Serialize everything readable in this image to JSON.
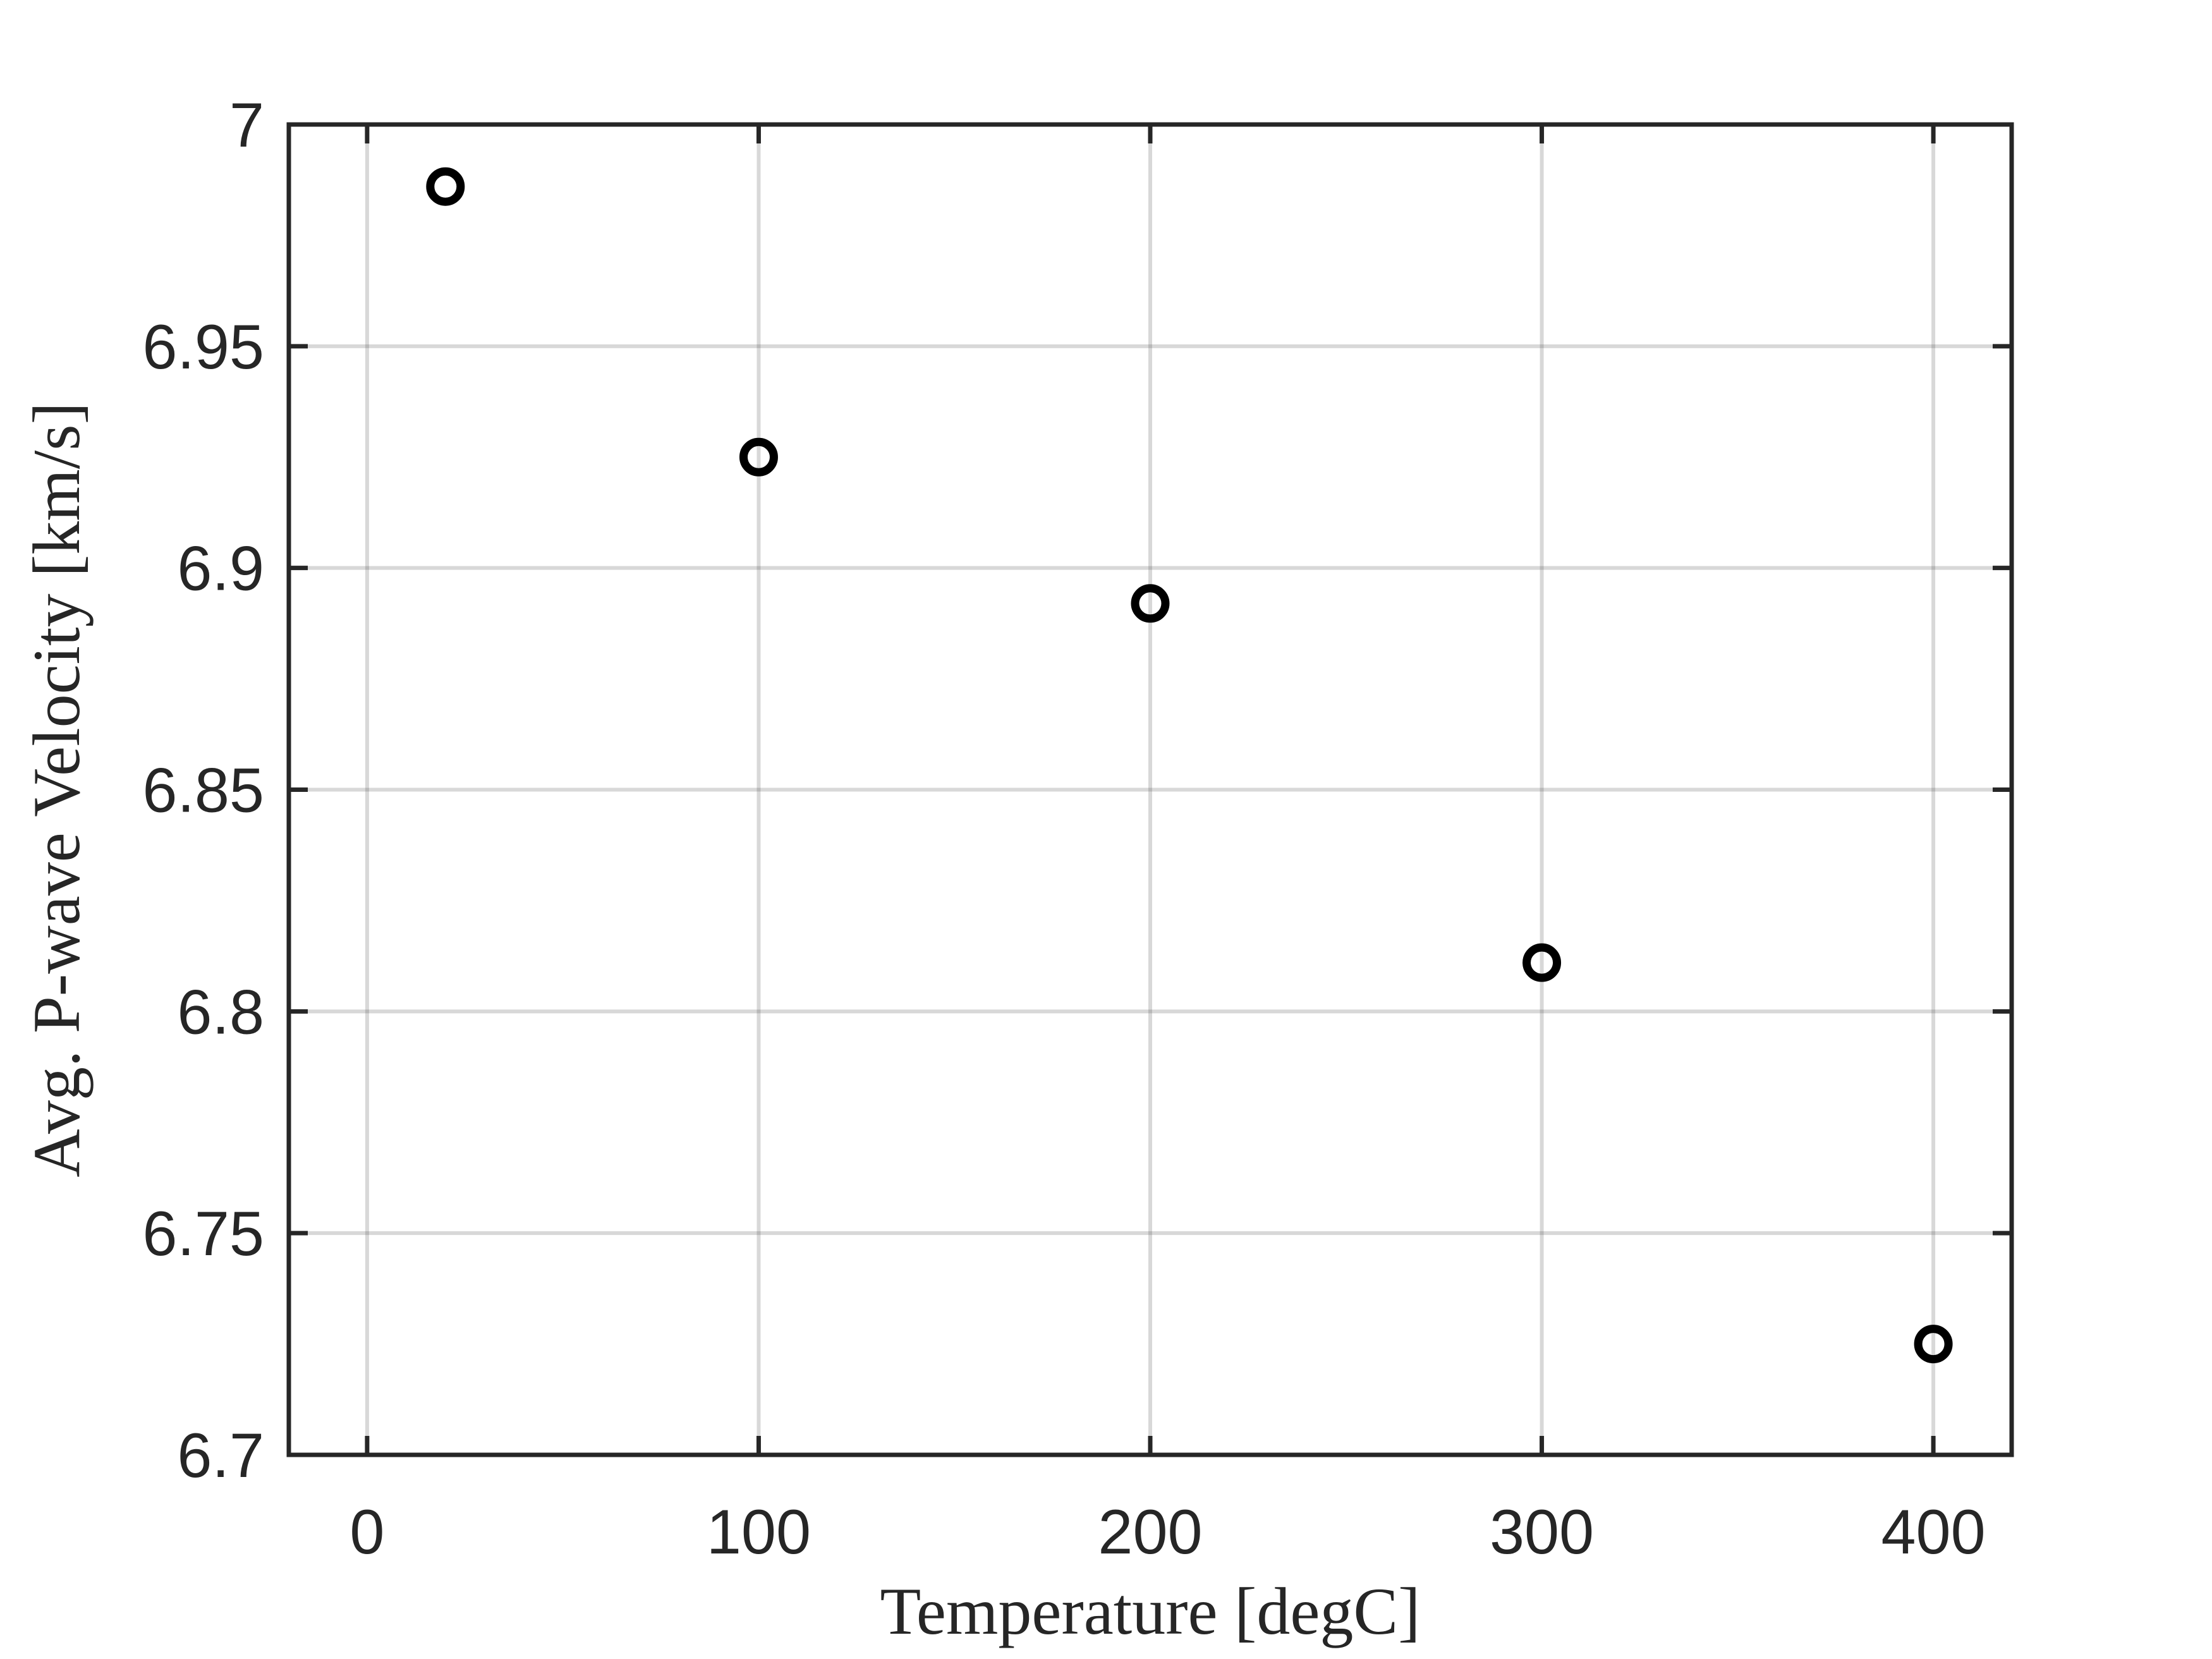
{
  "chart_data": {
    "type": "scatter",
    "title": "",
    "xlabel": "Temperature [degC]",
    "ylabel": "Avg. P-wave Velocity [km/s]",
    "xlim": [
      -20,
      420
    ],
    "ylim": [
      6.7,
      7.0
    ],
    "xticks": [
      0,
      100,
      200,
      300,
      400
    ],
    "xtick_labels": [
      "0",
      "100",
      "200",
      "300",
      "400"
    ],
    "yticks": [
      6.7,
      6.75,
      6.8,
      6.85,
      6.9,
      6.95,
      7.0
    ],
    "ytick_labels": [
      "6.7",
      "6.75",
      "6.8",
      "6.85",
      "6.9",
      "6.95",
      "7"
    ],
    "grid": true,
    "legend": false,
    "series": [
      {
        "marker": "open-circle",
        "color": "#000000",
        "points": [
          {
            "x": 20,
            "y": 6.986
          },
          {
            "x": 100,
            "y": 6.925
          },
          {
            "x": 200,
            "y": 6.892
          },
          {
            "x": 300,
            "y": 6.811
          },
          {
            "x": 400,
            "y": 6.725
          }
        ]
      }
    ]
  }
}
